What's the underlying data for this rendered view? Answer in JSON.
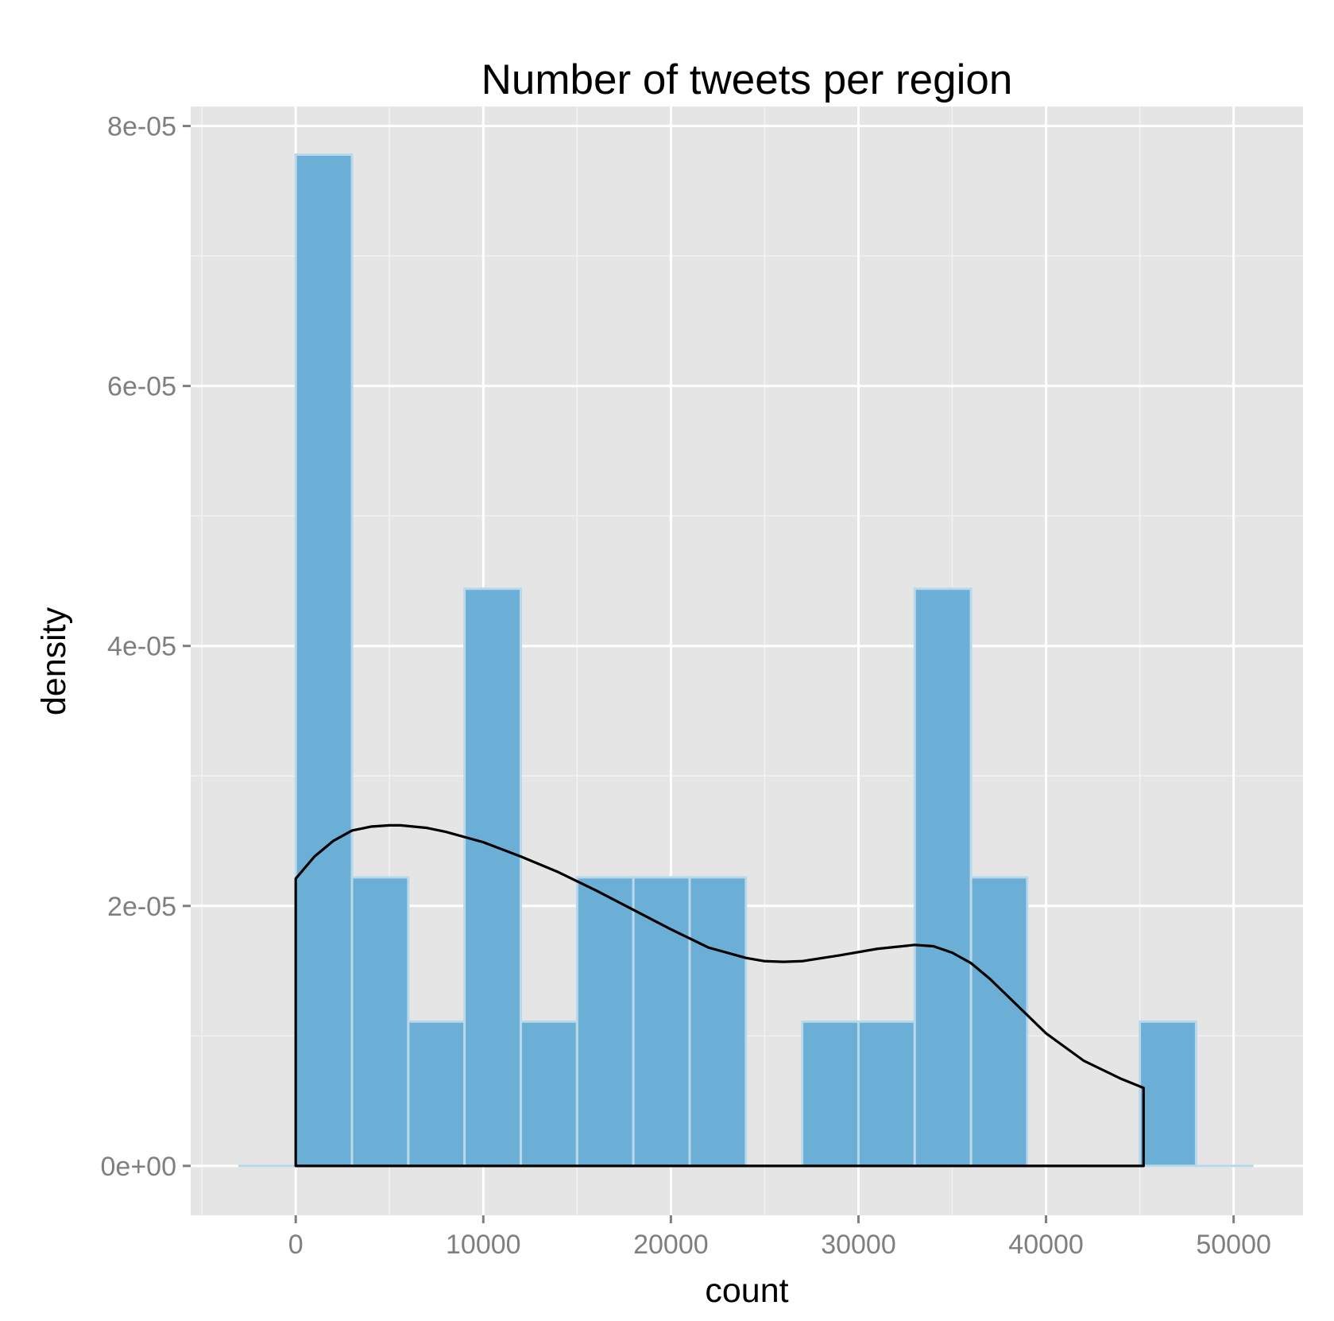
{
  "chart_data": {
    "type": "bar",
    "title": "Number of tweets per region",
    "xlabel": "count",
    "ylabel": "density",
    "xlim": [
      -5600,
      53700
    ],
    "ylim": [
      -3.8e-06,
      8.15e-05
    ],
    "x_ticks": [
      {
        "value": 0,
        "label": "0"
      },
      {
        "value": 10000,
        "label": "10000"
      },
      {
        "value": 20000,
        "label": "20000"
      },
      {
        "value": 30000,
        "label": "30000"
      },
      {
        "value": 40000,
        "label": "40000"
      },
      {
        "value": 50000,
        "label": "50000"
      }
    ],
    "y_ticks": [
      {
        "value": 0,
        "label": "0e+00"
      },
      {
        "value": 2e-05,
        "label": "2e-05"
      },
      {
        "value": 4e-05,
        "label": "4e-05"
      },
      {
        "value": 6e-05,
        "label": "6e-05"
      },
      {
        "value": 8e-05,
        "label": "8e-05"
      }
    ],
    "grid": true,
    "histogram": {
      "bin_width": 3000,
      "bins": [
        {
          "x0": -3000,
          "x1": 0,
          "density": 0
        },
        {
          "x0": 0,
          "x1": 3000,
          "density": 7.78e-05
        },
        {
          "x0": 3000,
          "x1": 6000,
          "density": 2.22e-05
        },
        {
          "x0": 6000,
          "x1": 9000,
          "density": 1.11e-05
        },
        {
          "x0": 9000,
          "x1": 12000,
          "density": 4.44e-05
        },
        {
          "x0": 12000,
          "x1": 15000,
          "density": 1.11e-05
        },
        {
          "x0": 15000,
          "x1": 18000,
          "density": 2.22e-05
        },
        {
          "x0": 18000,
          "x1": 21000,
          "density": 2.22e-05
        },
        {
          "x0": 21000,
          "x1": 24000,
          "density": 2.22e-05
        },
        {
          "x0": 24000,
          "x1": 27000,
          "density": 0
        },
        {
          "x0": 27000,
          "x1": 30000,
          "density": 1.11e-05
        },
        {
          "x0": 30000,
          "x1": 33000,
          "density": 1.11e-05
        },
        {
          "x0": 33000,
          "x1": 36000,
          "density": 4.44e-05
        },
        {
          "x0": 36000,
          "x1": 39000,
          "density": 2.22e-05
        },
        {
          "x0": 39000,
          "x1": 42000,
          "density": 0
        },
        {
          "x0": 42000,
          "x1": 45000,
          "density": 0
        },
        {
          "x0": 45000,
          "x1": 48000,
          "density": 1.11e-05
        },
        {
          "x0": 48000,
          "x1": 51000,
          "density": 0
        }
      ]
    },
    "density_curve": {
      "x": [
        0,
        1000,
        2000,
        3000,
        4000,
        5000,
        5600,
        7000,
        8000,
        10000,
        12000,
        14000,
        16000,
        18000,
        20000,
        22000,
        24000,
        25000,
        26000,
        27000,
        29000,
        31000,
        33000,
        34000,
        35000,
        36000,
        37000,
        38000,
        40000,
        42000,
        44000,
        45200
      ],
      "y": [
        2.21e-05,
        2.38e-05,
        2.5e-05,
        2.58e-05,
        2.61e-05,
        2.62e-05,
        2.62e-05,
        2.6e-05,
        2.57e-05,
        2.49e-05,
        2.38e-05,
        2.26e-05,
        2.12e-05,
        1.97e-05,
        1.82e-05,
        1.68e-05,
        1.6e-05,
        1.575e-05,
        1.57e-05,
        1.575e-05,
        1.62e-05,
        1.67e-05,
        1.7e-05,
        1.69e-05,
        1.64e-05,
        1.56e-05,
        1.44e-05,
        1.3e-05,
        1.02e-05,
        8.1e-06,
        6.7e-06,
        6e-06
      ],
      "color": "#000000"
    },
    "colors": {
      "bar_fill": "#6baed6",
      "bar_outline": "#b9d8ea",
      "panel_background": "#e5e5e5",
      "grid_major": "#ffffff",
      "grid_minor": "#f2f2f2",
      "tick_text": "#7f7f7f"
    }
  }
}
